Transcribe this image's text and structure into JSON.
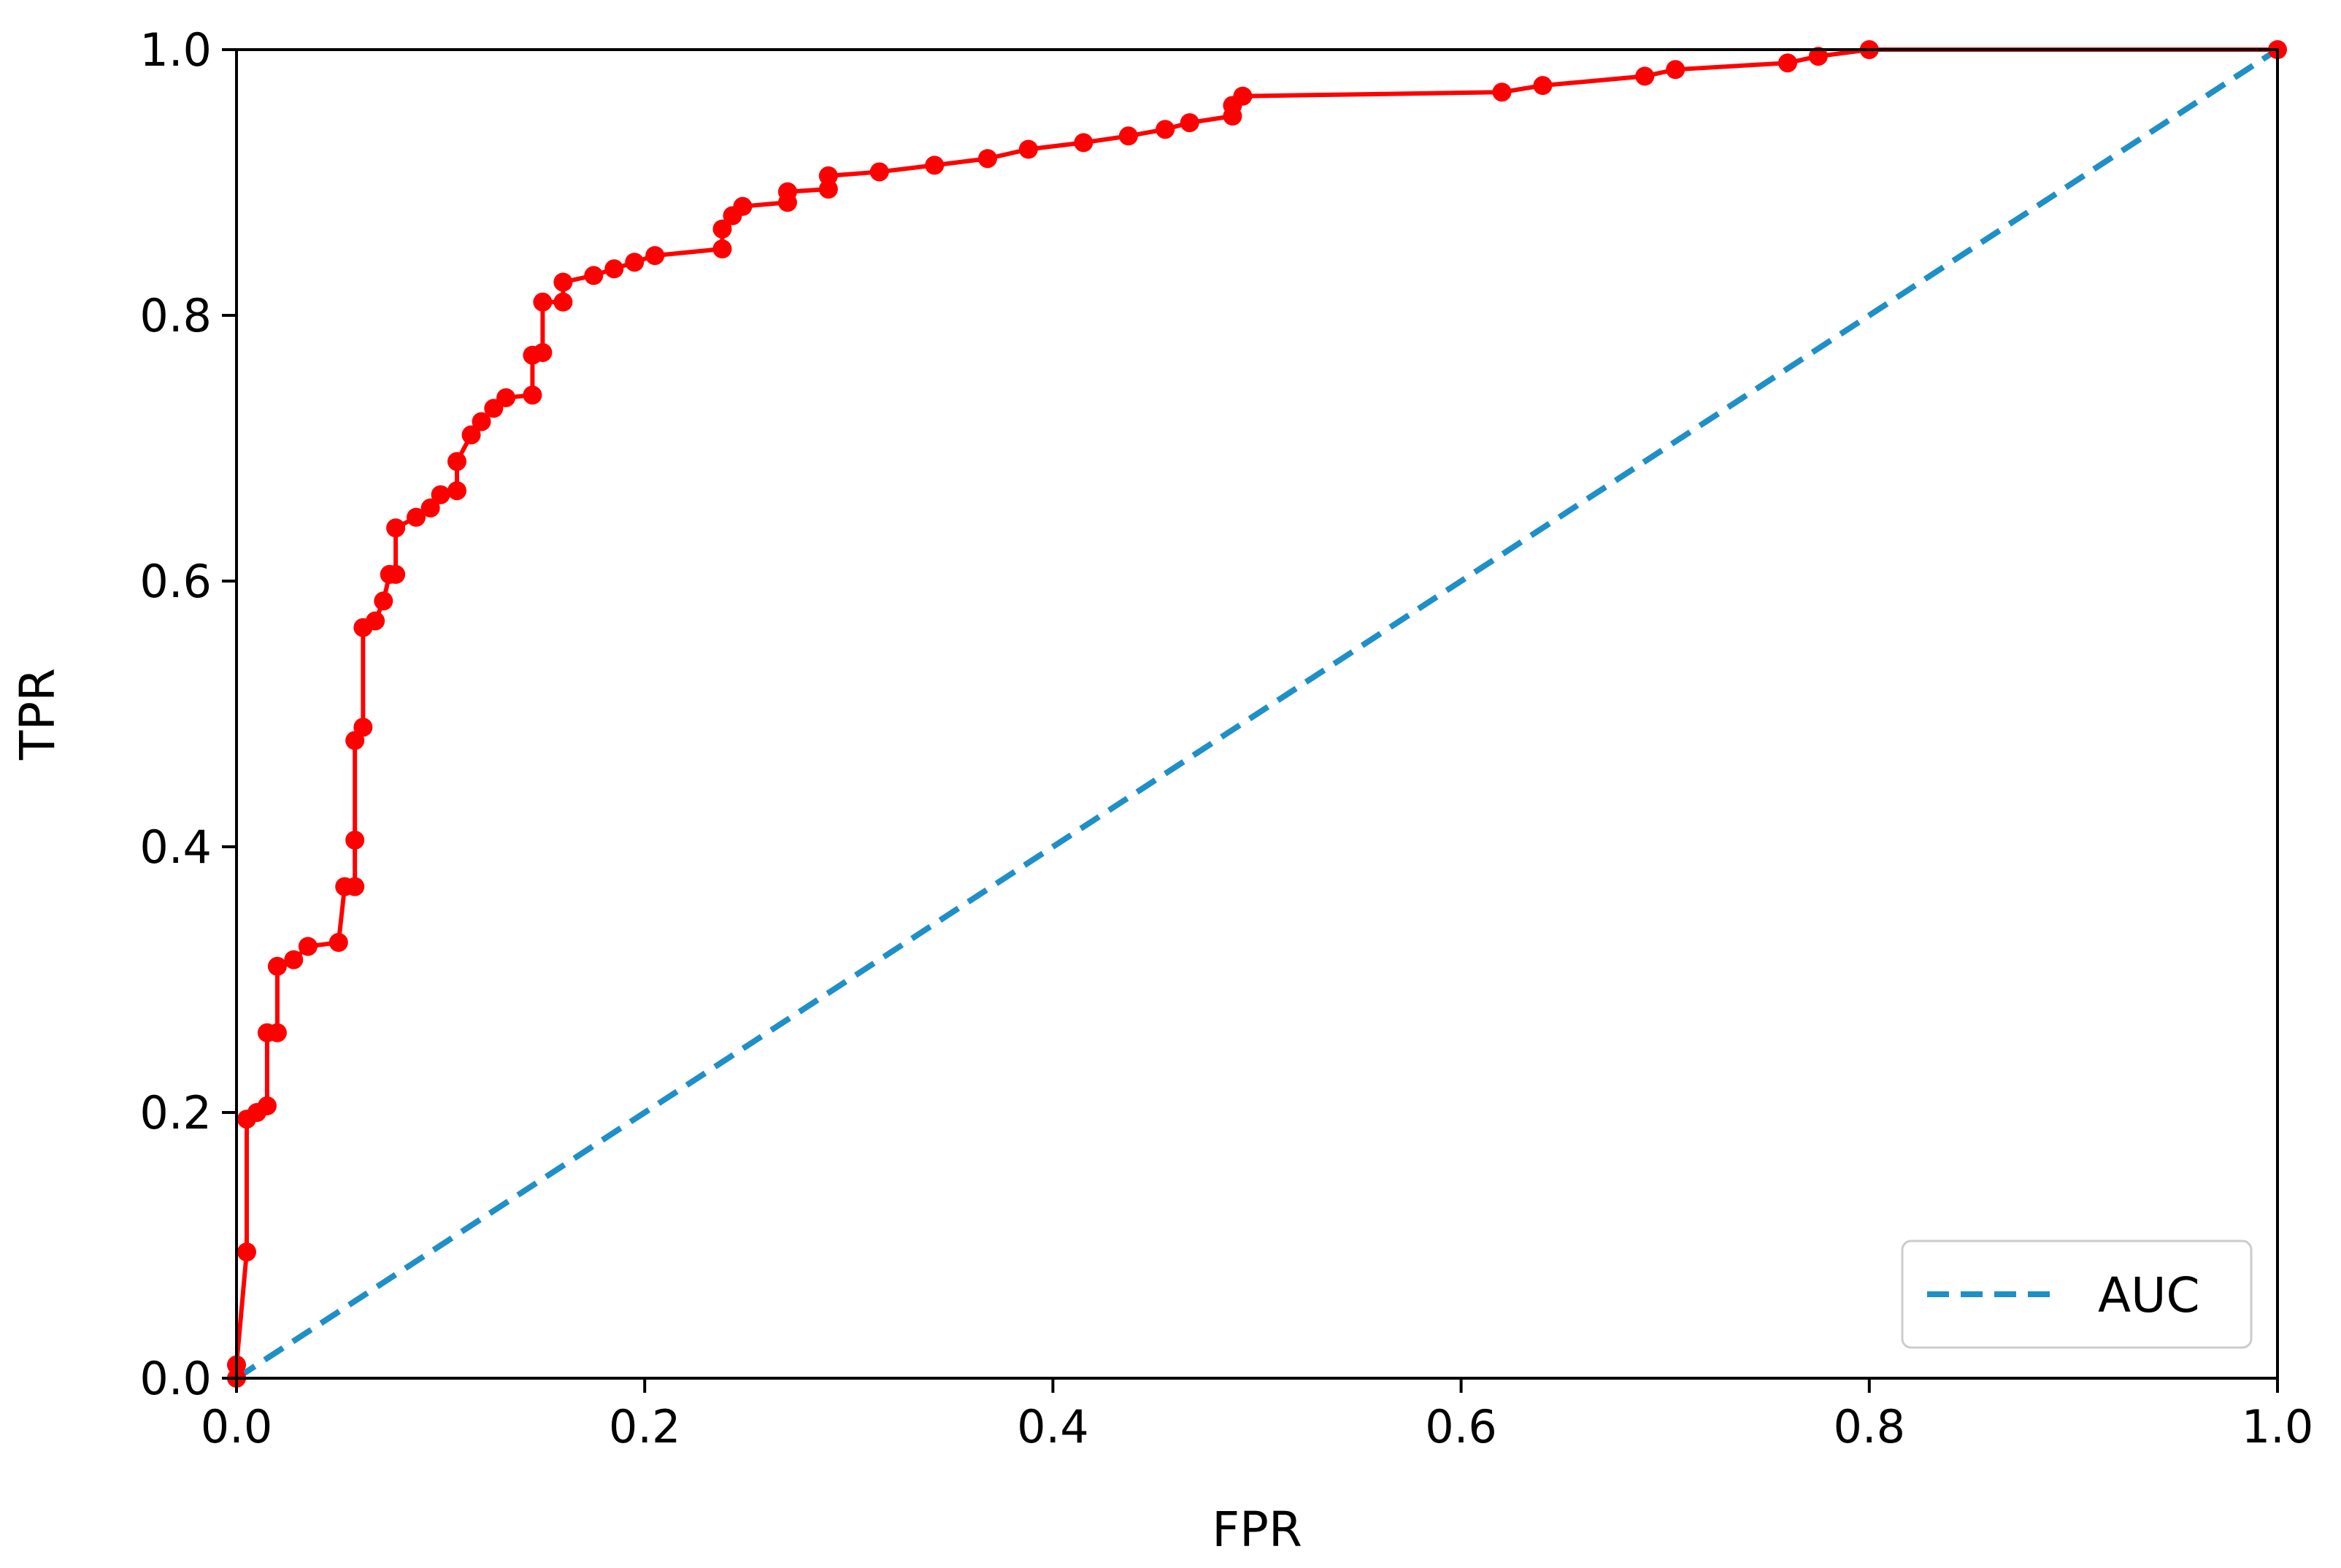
{
  "chart_data": {
    "type": "line",
    "title": "",
    "xlabel": "FPR",
    "ylabel": "TPR",
    "xlim": [
      0,
      1
    ],
    "ylim": [
      0,
      1
    ],
    "grid": false,
    "legend_position": "bottom-right",
    "x_ticks": [
      "0.0",
      "0.2",
      "0.4",
      "0.6",
      "0.8",
      "1.0"
    ],
    "y_ticks": [
      "0.0",
      "0.2",
      "0.4",
      "0.6",
      "0.8",
      "1.0"
    ],
    "series": [
      {
        "style": "solid-with-markers",
        "color": "#ff0000",
        "points": [
          [
            0.0,
            0.0
          ],
          [
            0.0,
            0.01
          ],
          [
            0.005,
            0.095
          ],
          [
            0.005,
            0.195
          ],
          [
            0.01,
            0.2
          ],
          [
            0.015,
            0.205
          ],
          [
            0.015,
            0.26
          ],
          [
            0.02,
            0.26
          ],
          [
            0.02,
            0.31
          ],
          [
            0.028,
            0.315
          ],
          [
            0.035,
            0.325
          ],
          [
            0.05,
            0.328
          ],
          [
            0.053,
            0.37
          ],
          [
            0.058,
            0.37
          ],
          [
            0.058,
            0.405
          ],
          [
            0.058,
            0.48
          ],
          [
            0.062,
            0.49
          ],
          [
            0.062,
            0.565
          ],
          [
            0.068,
            0.57
          ],
          [
            0.072,
            0.585
          ],
          [
            0.075,
            0.605
          ],
          [
            0.078,
            0.605
          ],
          [
            0.078,
            0.64
          ],
          [
            0.088,
            0.648
          ],
          [
            0.095,
            0.655
          ],
          [
            0.1,
            0.665
          ],
          [
            0.108,
            0.668
          ],
          [
            0.108,
            0.69
          ],
          [
            0.115,
            0.71
          ],
          [
            0.12,
            0.72
          ],
          [
            0.126,
            0.73
          ],
          [
            0.132,
            0.738
          ],
          [
            0.145,
            0.74
          ],
          [
            0.145,
            0.77
          ],
          [
            0.15,
            0.772
          ],
          [
            0.15,
            0.81
          ],
          [
            0.16,
            0.81
          ],
          [
            0.16,
            0.825
          ],
          [
            0.175,
            0.83
          ],
          [
            0.185,
            0.835
          ],
          [
            0.195,
            0.84
          ],
          [
            0.205,
            0.845
          ],
          [
            0.238,
            0.85
          ],
          [
            0.238,
            0.865
          ],
          [
            0.243,
            0.875
          ],
          [
            0.248,
            0.882
          ],
          [
            0.27,
            0.885
          ],
          [
            0.27,
            0.893
          ],
          [
            0.29,
            0.895
          ],
          [
            0.29,
            0.905
          ],
          [
            0.315,
            0.908
          ],
          [
            0.342,
            0.913
          ],
          [
            0.368,
            0.918
          ],
          [
            0.388,
            0.925
          ],
          [
            0.415,
            0.93
          ],
          [
            0.437,
            0.935
          ],
          [
            0.455,
            0.94
          ],
          [
            0.467,
            0.945
          ],
          [
            0.488,
            0.95
          ],
          [
            0.488,
            0.958
          ],
          [
            0.493,
            0.965
          ],
          [
            0.62,
            0.968
          ],
          [
            0.64,
            0.973
          ],
          [
            0.69,
            0.98
          ],
          [
            0.705,
            0.985
          ],
          [
            0.76,
            0.99
          ],
          [
            0.775,
            0.995
          ],
          [
            0.8,
            1.0
          ],
          [
            1.0,
            1.0
          ]
        ]
      },
      {
        "name": "AUC",
        "style": "dashed",
        "color": "#1f8fc8",
        "points": [
          [
            0.0,
            0.0
          ],
          [
            1.0,
            1.0
          ]
        ]
      }
    ]
  }
}
